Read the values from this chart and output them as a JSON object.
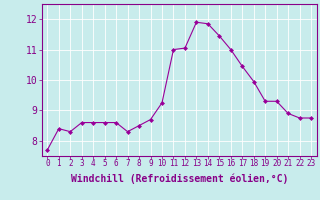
{
  "x": [
    0,
    1,
    2,
    3,
    4,
    5,
    6,
    7,
    8,
    9,
    10,
    11,
    12,
    13,
    14,
    15,
    16,
    17,
    18,
    19,
    20,
    21,
    22,
    23
  ],
  "y": [
    7.7,
    8.4,
    8.3,
    8.6,
    8.6,
    8.6,
    8.6,
    8.3,
    8.5,
    8.7,
    9.25,
    11.0,
    11.05,
    11.9,
    11.85,
    11.45,
    11.0,
    10.45,
    9.95,
    9.3,
    9.3,
    8.9,
    8.75,
    8.75
  ],
  "xlabel": "Windchill (Refroidissement éolien,°C)",
  "xlim": [
    -0.5,
    23.5
  ],
  "ylim": [
    7.5,
    12.5
  ],
  "yticks": [
    8,
    9,
    10,
    11,
    12
  ],
  "xticks": [
    0,
    1,
    2,
    3,
    4,
    5,
    6,
    7,
    8,
    9,
    10,
    11,
    12,
    13,
    14,
    15,
    16,
    17,
    18,
    19,
    20,
    21,
    22,
    23
  ],
  "xtick_labels": [
    "0",
    "1",
    "2",
    "3",
    "4",
    "5",
    "6",
    "7",
    "8",
    "9",
    "10",
    "11",
    "12",
    "13",
    "14",
    "15",
    "16",
    "17",
    "18",
    "19",
    "20",
    "21",
    "22",
    "23"
  ],
  "line_color": "#990099",
  "marker": "D",
  "marker_size": 2,
  "bg_color": "#c8ecec",
  "grid_color": "#ffffff",
  "tick_color": "#880088",
  "spine_color": "#880088",
  "xlabel_color": "#880088",
  "xlabel_fontsize": 7,
  "ytick_fontsize": 7,
  "xtick_fontsize": 5.5
}
